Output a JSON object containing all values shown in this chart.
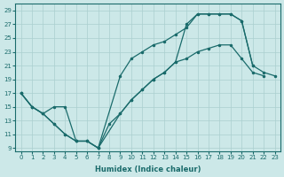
{
  "xlabel": "Humidex (Indice chaleur)",
  "bg_color": "#cce8e8",
  "grid_color": "#aacfcf",
  "line_color": "#1a6b6b",
  "xlim": [
    -0.5,
    23.5
  ],
  "ylim": [
    8.5,
    30
  ],
  "xticks": [
    0,
    1,
    2,
    3,
    4,
    5,
    6,
    7,
    8,
    9,
    10,
    11,
    12,
    13,
    14,
    15,
    16,
    17,
    18,
    19,
    20,
    21,
    22,
    23
  ],
  "yticks": [
    9,
    11,
    13,
    15,
    17,
    19,
    21,
    23,
    25,
    27,
    29
  ],
  "lineA_x": [
    0,
    1,
    2,
    3,
    4,
    5,
    6,
    7,
    8,
    9,
    10,
    11,
    12,
    13,
    14,
    15,
    16,
    17,
    18,
    19,
    20,
    21,
    22
  ],
  "lineA_y": [
    17,
    15,
    14,
    15,
    15,
    10,
    10,
    9,
    12.5,
    14,
    16,
    17.5,
    19,
    20,
    21.5,
    22,
    23,
    23.5,
    24,
    24,
    22,
    20,
    19.5
  ],
  "lineB_x": [
    0,
    1,
    2,
    3,
    4,
    5,
    6,
    7,
    9,
    10,
    11,
    12,
    13,
    14,
    15,
    16,
    17,
    18,
    19,
    20,
    21
  ],
  "lineB_y": [
    17,
    15,
    14,
    12.5,
    11,
    10,
    10,
    9,
    19.5,
    22,
    23,
    24,
    24.5,
    25.5,
    26.5,
    28.5,
    28.5,
    28.5,
    28.5,
    27.5,
    21
  ],
  "lineC_x": [
    0,
    1,
    2,
    3,
    4,
    5,
    6,
    7,
    9,
    10,
    11,
    12,
    13,
    14,
    15,
    16,
    17,
    18,
    19,
    20,
    21,
    22,
    23
  ],
  "lineC_y": [
    17,
    15,
    14,
    12.5,
    11,
    10,
    10,
    9,
    14,
    16,
    17.5,
    19,
    20,
    21.5,
    27,
    28.5,
    28.5,
    28.5,
    28.5,
    27.5,
    21,
    20,
    19.5
  ]
}
